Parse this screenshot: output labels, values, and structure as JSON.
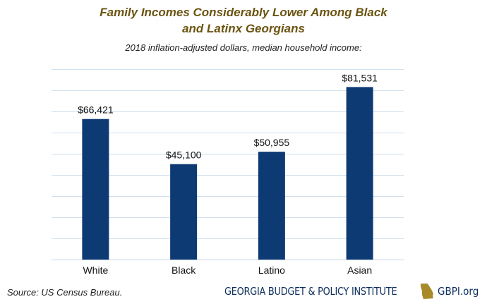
{
  "header": {
    "title_line1": "Family Incomes Considerably Lower Among Black",
    "title_line2": "and Latinx Georgians",
    "subtitle": "2018 inflation-adjusted dollars, median household income:"
  },
  "footer": {
    "source": "Source: US Census Bureau.",
    "logo_name": "GEORGIA BUDGET & POLICY INSTITUTE",
    "logo_url": "GBPI.org",
    "logo_icon": "georgia-state-outline-icon"
  },
  "colors": {
    "bar": "#0e3a73",
    "title": "#6b5412",
    "grid": "#cfe0ee",
    "logo_state": "#a88a2b",
    "logo_text": "#0d2e5c"
  },
  "chart_data": {
    "type": "bar",
    "title": "Family Incomes Considerably Lower Among Black and Latinx Georgians",
    "subtitle": "2018 inflation-adjusted dollars, median household income:",
    "categories": [
      "White",
      "Black",
      "Latino",
      "Asian"
    ],
    "values": [
      66421,
      45100,
      50955,
      81531
    ],
    "data_labels": [
      "$66,421",
      "$45,100",
      "$50,955",
      "$81,531"
    ],
    "ylim": [
      0,
      90000
    ],
    "y_gridline_step": 10000,
    "grid": true,
    "xlabel": "",
    "ylabel": ""
  }
}
